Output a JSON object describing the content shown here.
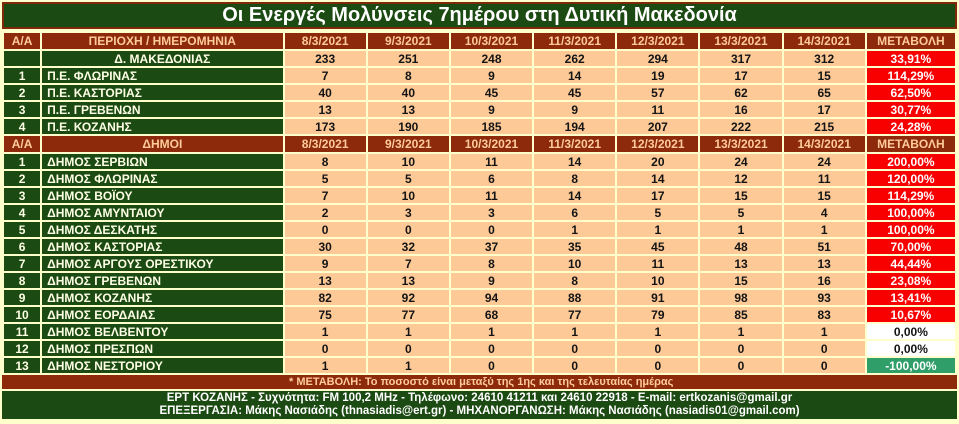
{
  "footnote": "* ΜΕΤΑΒΟΛΗ: Το ποσοστό είναι μεταξύ της 1ης και της τελευταίας ημέρας",
  "footer": {
    "line1": "ΕΡΤ ΚΟΖΑΝΗΣ - Συχνότητα:  FM 100,2 MHz - Τηλέφωνο: 24610 41211 και 24610 22918 - E-mail: ertkozanis@gmail.gr",
    "line2": "ΕΠΕΞΕΡΓΑΣΙΑ: Μάκης Νασιάδης (thnasiadis@ert.gr) - ΜΗΧΑΝΟΡΓΑΝΩΣΗ: Μάκης Νασιάδης (nasiadis01@gmail.com)"
  },
  "colors": {
    "dark_green": "#1B4A12",
    "maroon": "#8D2A0B",
    "peach_cell": "#FDC997",
    "cream_grid": "#FFFFCC",
    "change_red": "#F80000",
    "change_green": "#2F9E68",
    "header_text": "#FFCC99",
    "green_cell_text": "#FFFFE6"
  },
  "chart_data": {
    "type": "table",
    "title": "Οι Ενεργές Μολύνσεις 7ημέρου στη Δυτική Μακεδονία",
    "dates": [
      "8/3/2021",
      "9/3/2021",
      "10/3/2021",
      "11/3/2021",
      "12/3/2021",
      "13/3/2021",
      "14/3/2021"
    ],
    "sections": [
      {
        "index_header": "Α/Α",
        "label_header": "ΠΕΡΙΟΧΗ / ΗΜΕΡΟΜΗΝΙΑ",
        "change_header": "ΜΕΤΑΒΟΛΗ",
        "rows": [
          {
            "index": "",
            "label": "Δ. ΜΑΚΕΔΟΝΙΑΣ",
            "label_align": "center",
            "values": [
              233,
              251,
              248,
              262,
              294,
              317,
              312
            ],
            "change": "33,91%",
            "change_style": "red"
          },
          {
            "index": "1",
            "label": "Π.Ε. ΦΛΩΡΙΝΑΣ",
            "values": [
              7,
              8,
              9,
              14,
              19,
              17,
              15
            ],
            "change": "114,29%",
            "change_style": "red"
          },
          {
            "index": "2",
            "label": "Π.Ε. ΚΑΣΤΟΡΙΑΣ",
            "values": [
              40,
              40,
              45,
              45,
              57,
              62,
              65
            ],
            "change": "62,50%",
            "change_style": "red"
          },
          {
            "index": "3",
            "label": "Π.Ε. ΓΡΕΒΕΝΩΝ",
            "values": [
              13,
              13,
              9,
              9,
              11,
              16,
              17
            ],
            "change": "30,77%",
            "change_style": "red"
          },
          {
            "index": "4",
            "label": "Π.Ε. ΚΟΖΑΝΗΣ",
            "values": [
              173,
              190,
              185,
              194,
              207,
              222,
              215
            ],
            "change": "24,28%",
            "change_style": "red"
          }
        ]
      },
      {
        "index_header": "Α/Α",
        "label_header": "ΔΗΜΟΙ",
        "change_header": "ΜΕΤΑΒΟΛΗ",
        "rows": [
          {
            "index": "1",
            "label": "ΔΗΜΟΣ ΣΕΡΒΙΩΝ",
            "values": [
              8,
              10,
              11,
              14,
              20,
              24,
              24
            ],
            "change": "200,00%",
            "change_style": "red"
          },
          {
            "index": "2",
            "label": "ΔΗΜΟΣ ΦΛΩΡΙΝΑΣ",
            "values": [
              5,
              5,
              6,
              8,
              14,
              12,
              11
            ],
            "change": "120,00%",
            "change_style": "red"
          },
          {
            "index": "3",
            "label": "ΔΗΜΟΣ ΒΟΪΟΥ",
            "values": [
              7,
              10,
              11,
              14,
              17,
              15,
              15
            ],
            "change": "114,29%",
            "change_style": "red"
          },
          {
            "index": "4",
            "label": "ΔΗΜΟΣ ΑΜΥΝΤΑΙΟΥ",
            "values": [
              2,
              3,
              3,
              6,
              5,
              5,
              4
            ],
            "change": "100,00%",
            "change_style": "red"
          },
          {
            "index": "5",
            "label": "ΔΗΜΟΣ ΔΕΣΚΑΤΗΣ",
            "values": [
              0,
              0,
              0,
              1,
              1,
              1,
              1
            ],
            "change": "100,00%",
            "change_style": "red"
          },
          {
            "index": "6",
            "label": "ΔΗΜΟΣ ΚΑΣΤΟΡΙΑΣ",
            "values": [
              30,
              32,
              37,
              35,
              45,
              48,
              51
            ],
            "change": "70,00%",
            "change_style": "red"
          },
          {
            "index": "7",
            "label": "ΔΗΜΟΣ ΑΡΓΟΥΣ ΟΡΕΣΤΙΚΟΥ",
            "values": [
              9,
              7,
              8,
              10,
              11,
              13,
              13
            ],
            "change": "44,44%",
            "change_style": "red"
          },
          {
            "index": "8",
            "label": "ΔΗΜΟΣ ΓΡΕΒΕΝΩΝ",
            "values": [
              13,
              13,
              9,
              8,
              10,
              15,
              16
            ],
            "change": "23,08%",
            "change_style": "red"
          },
          {
            "index": "9",
            "label": "ΔΗΜΟΣ ΚΟΖΑΝΗΣ",
            "values": [
              82,
              92,
              94,
              88,
              91,
              98,
              93
            ],
            "change": "13,41%",
            "change_style": "red"
          },
          {
            "index": "10",
            "label": "ΔΗΜΟΣ ΕΟΡΔΑΙΑΣ",
            "values": [
              75,
              77,
              68,
              77,
              79,
              85,
              83
            ],
            "change": "10,67%",
            "change_style": "red"
          },
          {
            "index": "11",
            "label": "ΔΗΜΟΣ ΒΕΛΒΕΝΤΟΥ",
            "values": [
              1,
              1,
              1,
              1,
              1,
              1,
              1
            ],
            "change": "0,00%",
            "change_style": "white"
          },
          {
            "index": "12",
            "label": "ΔΗΜΟΣ ΠΡΕΣΠΩΝ",
            "values": [
              0,
              0,
              0,
              0,
              0,
              0,
              0
            ],
            "change": "0,00%",
            "change_style": "white"
          },
          {
            "index": "13",
            "label": "ΔΗΜΟΣ ΝΕΣΤΟΡΙΟΥ",
            "values": [
              1,
              1,
              0,
              0,
              0,
              0,
              0
            ],
            "change": "-100,00%",
            "change_style": "green"
          }
        ]
      }
    ]
  }
}
